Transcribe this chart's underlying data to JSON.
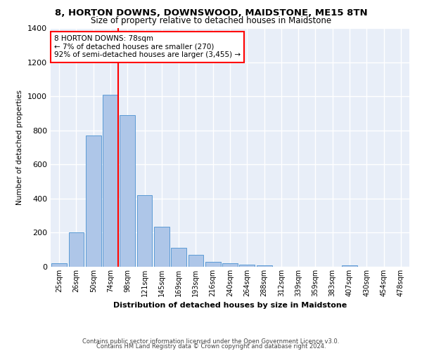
{
  "title": "8, HORTON DOWNS, DOWNSWOOD, MAIDSTONE, ME15 8TN",
  "subtitle": "Size of property relative to detached houses in Maidstone",
  "xlabel": "Distribution of detached houses by size in Maidstone",
  "ylabel": "Number of detached properties",
  "footnote1": "Contains HM Land Registry data © Crown copyright and database right 2024.",
  "footnote2": "Contains public sector information licensed under the Open Government Licence v3.0.",
  "annotation_line1": "8 HORTON DOWNS: 78sqm",
  "annotation_line2": "← 7% of detached houses are smaller (270)",
  "annotation_line3": "92% of semi-detached houses are larger (3,455) →",
  "bar_color": "#aec6e8",
  "bar_edge_color": "#5b9bd5",
  "vline_color": "red",
  "vline_x_index": 3,
  "categories": [
    "25sqm",
    "26sqm",
    "50sqm",
    "74sqm",
    "98sqm",
    "121sqm",
    "145sqm",
    "169sqm",
    "193sqm",
    "216sqm",
    "240sqm",
    "264sqm",
    "288sqm",
    "312sqm",
    "339sqm",
    "359sqm",
    "383sqm",
    "407sqm",
    "430sqm",
    "454sqm",
    "478sqm"
  ],
  "values": [
    20,
    200,
    770,
    1010,
    890,
    420,
    235,
    110,
    70,
    28,
    22,
    12,
    10,
    0,
    0,
    0,
    0,
    10,
    0,
    0,
    0
  ],
  "ylim": [
    0,
    1400
  ],
  "yticks": [
    0,
    200,
    400,
    600,
    800,
    1000,
    1200,
    1400
  ],
  "bg_color": "#e8eef8",
  "grid_color": "white",
  "title_fontsize": 9.5,
  "subtitle_fontsize": 8.5
}
